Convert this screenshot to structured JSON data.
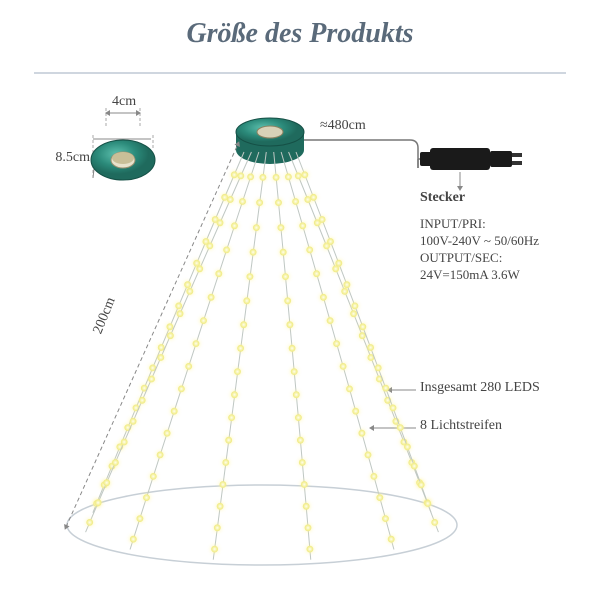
{
  "title": "Größe des Produkts",
  "ring": {
    "innerDiameter": "4cm",
    "outerDiameter": "8.5cm",
    "color": "#2b8a7a",
    "darkColor": "#1f6a5d",
    "highlight": "#4fb3a0"
  },
  "cableLength": "≈480cm",
  "treeHeight": "200cm",
  "plug": {
    "label": "Stecker",
    "color": "#222222"
  },
  "specs": {
    "line1": "INPUT/PRI:",
    "line2": "100V-240V ~ 50/60Hz",
    "line3": "OUTPUT/SEC:",
    "line4": "24V=150mA 3.6W"
  },
  "note1": "Insgesamt 280 LEDS",
  "note2": "8 Lichtstreifen",
  "colors": {
    "background": "#ffffff",
    "titleColor": "#5a6a7a",
    "sepColor": "#cfd6df",
    "textColor": "#444444",
    "arrowColor": "#888888",
    "dashColor": "#aaaaaa",
    "wireColor": "#bfc7c3",
    "ellipseColor": "#c7cfd6",
    "ledColor": "#f6f3a8",
    "ledGlow": "#fffbe0"
  },
  "layout": {
    "titleFontSize": 28,
    "labelFontSize": 14,
    "specFontSize": 13,
    "strands": 8,
    "ledsPerStrand": 17
  }
}
